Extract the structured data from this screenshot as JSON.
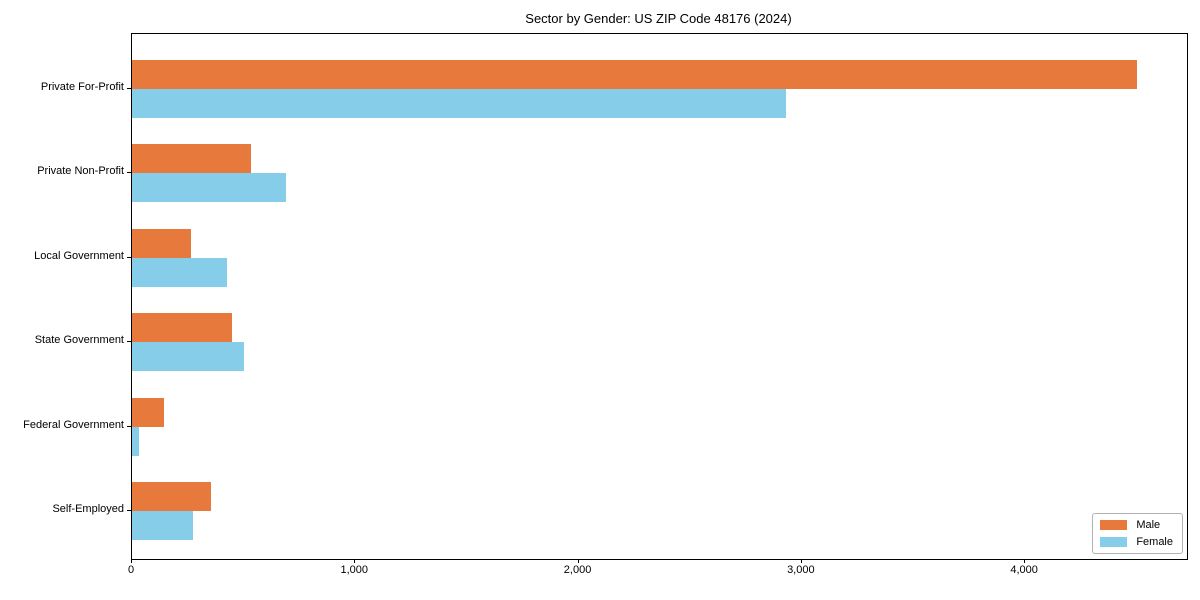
{
  "chart_data": {
    "type": "bar",
    "orientation": "horizontal",
    "title": "Sector by Gender: US ZIP Code 48176 (2024)",
    "categories": [
      "Private For-Profit",
      "Private Non-Profit",
      "Local Government",
      "State Government",
      "Federal Government",
      "Self-Employed"
    ],
    "series": [
      {
        "name": "Male",
        "color": "#e8793c",
        "values": [
          4500,
          535,
          265,
          450,
          145,
          355
        ]
      },
      {
        "name": "Female",
        "color": "#85cde8",
        "values": [
          2930,
          690,
          425,
          500,
          30,
          275
        ]
      }
    ],
    "xlabel": "",
    "ylabel": "",
    "xlim": [
      0,
      4725
    ],
    "x_ticks": [
      0,
      1000,
      2000,
      3000,
      4000
    ],
    "x_tick_labels": [
      "0",
      "1,000",
      "2,000",
      "3,000",
      "4,000"
    ],
    "grid": false,
    "legend": {
      "position": "lower right",
      "entries": [
        "Male",
        "Female"
      ]
    },
    "colors": {
      "male": "#e8793c",
      "female": "#85cde8",
      "axis": "#000000",
      "legend_border": "#b3b3b3",
      "background": "#ffffff"
    }
  }
}
